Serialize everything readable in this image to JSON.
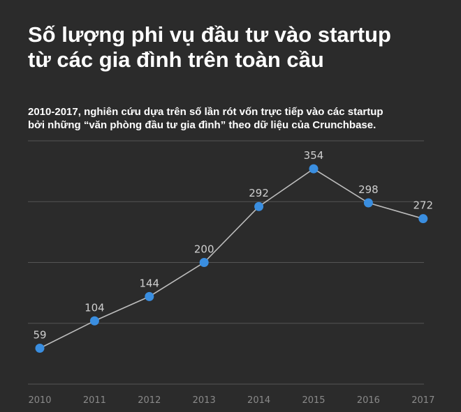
{
  "title_line1": "Số lượng phi vụ đầu tư vào startup",
  "title_line2": "từ các gia đình trên toàn cầu",
  "subtitle_line1": "2010-2017, nghiên cứu dựa trên số lần rót vốn trực tiếp vào các startup",
  "subtitle_line2": "bởi những “văn phòng đầu tư gia đình” theo dữ liệu của Crunchbase.",
  "colors": {
    "background": "#2b2b2b",
    "line": "#bdbdbd",
    "point": "#3a8ee0",
    "grid": "#555555",
    "axis_text": "#8a8a8a",
    "data_label": "#cfcfcf"
  },
  "chart_data": {
    "type": "line",
    "title": "Số lượng phi vụ đầu tư vào startup từ các gia đình trên toàn cầu",
    "subtitle": "2010-2017, nghiên cứu dựa trên số lần rót vốn trực tiếp vào các startup bởi những “văn phòng đầu tư gia đình” theo dữ liệu của Crunchbase.",
    "categories": [
      "2010",
      "2011",
      "2012",
      "2013",
      "2014",
      "2015",
      "2016",
      "2017"
    ],
    "values": [
      59,
      104,
      144,
      200,
      292,
      354,
      298,
      272
    ],
    "xlabel": "",
    "ylabel": "",
    "ylim": [
      0,
      400
    ],
    "grid": true,
    "data_labels": true,
    "legend": "none"
  }
}
